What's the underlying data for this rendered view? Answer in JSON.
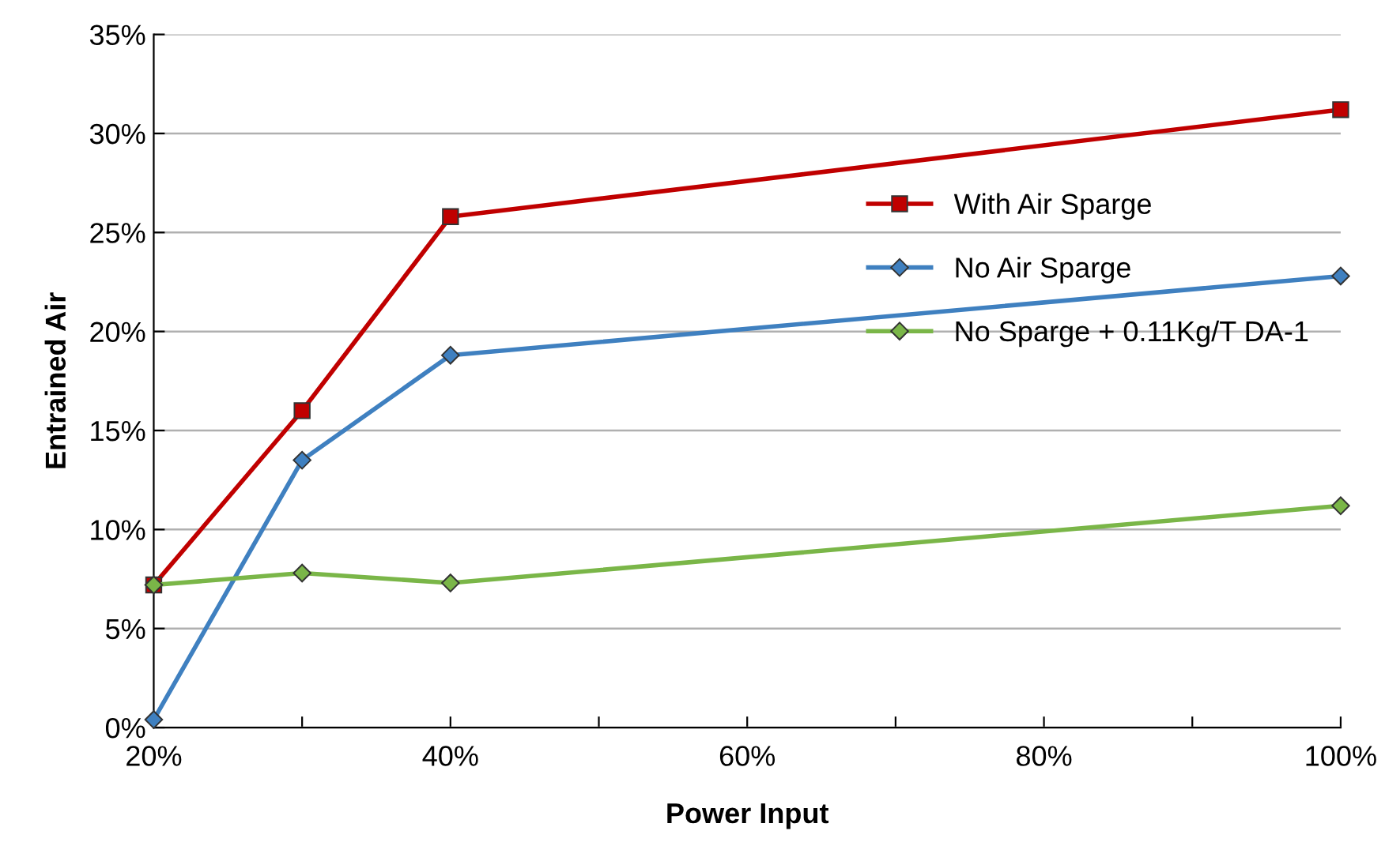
{
  "chart_data": {
    "type": "line",
    "xlabel": "Power Input",
    "ylabel": "Entrained Air",
    "xlim": [
      20,
      100
    ],
    "xticks": [
      {
        "value": 20,
        "label": "20%"
      },
      {
        "value": 30,
        "label": null
      },
      {
        "value": 40,
        "label": "40%"
      },
      {
        "value": 50,
        "label": null
      },
      {
        "value": 60,
        "label": "60%"
      },
      {
        "value": 70,
        "label": null
      },
      {
        "value": 80,
        "label": "80%"
      },
      {
        "value": 90,
        "label": null
      },
      {
        "value": 100,
        "label": "100%"
      }
    ],
    "ylim": [
      0,
      35
    ],
    "yticks": [
      {
        "value": 0,
        "label": "0%"
      },
      {
        "value": 5,
        "label": "5%"
      },
      {
        "value": 10,
        "label": "10%"
      },
      {
        "value": 15,
        "label": "15%"
      },
      {
        "value": 20,
        "label": "20%"
      },
      {
        "value": 25,
        "label": "25%"
      },
      {
        "value": 30,
        "label": "30%"
      },
      {
        "value": 35,
        "label": "35%"
      }
    ],
    "grid": "y",
    "legend": "right",
    "x": [
      20,
      30,
      40,
      100
    ],
    "series": [
      {
        "name": "With Air Sparge",
        "color": "#c00000",
        "marker": "square",
        "values": [
          7.2,
          16.0,
          25.8,
          31.2
        ]
      },
      {
        "name": "No Air Sparge",
        "color": "#3f80c0",
        "marker": "diamond",
        "values": [
          0.4,
          13.5,
          18.8,
          22.8
        ]
      },
      {
        "name": "No Sparge + 0.11Kg/T DA-1",
        "color": "#7ab648",
        "marker": "diamond",
        "values": [
          7.2,
          7.8,
          7.3,
          11.2
        ]
      }
    ]
  }
}
